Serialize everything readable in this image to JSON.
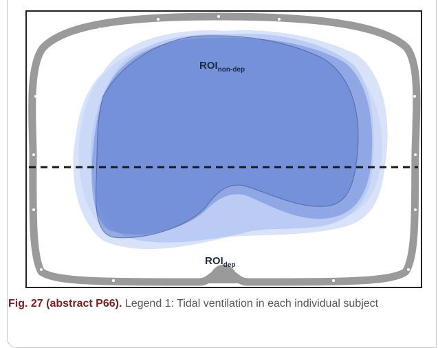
{
  "diagram": {
    "label_top_main": "ROI",
    "label_top_sub": "non-dep",
    "label_bottom_main": "ROI",
    "label_bottom_sub": "dep"
  },
  "caption": {
    "lead": "Fig. 27 (abstract P66).",
    "text": " Legend 1: Tidal ventilation in each individual subject"
  },
  "colors": {
    "thorax_ring": "#9a9a9a",
    "ventilation_dark": "#5f7fd0",
    "ventilation_light": "#a8bff0",
    "divider": "#1a1a1a",
    "caption_lead": "#7a1e1e"
  }
}
